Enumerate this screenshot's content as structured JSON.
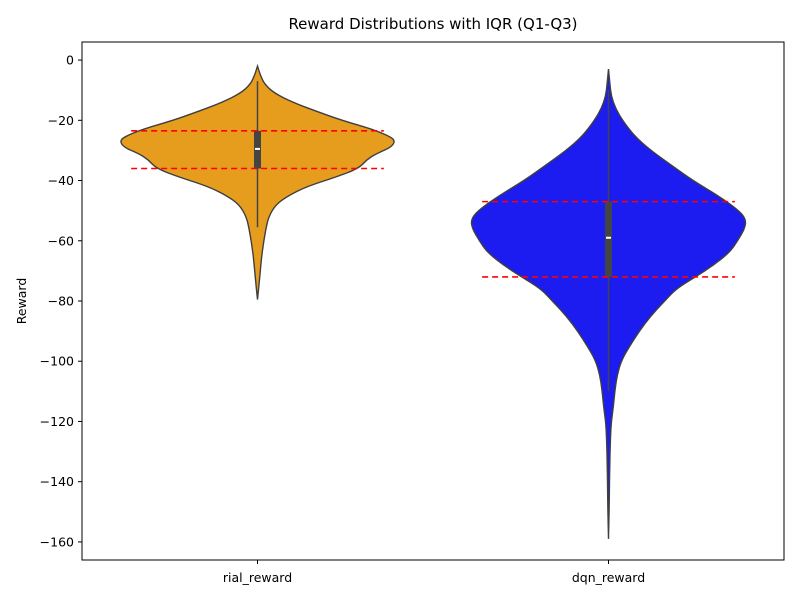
{
  "chart_data": {
    "type": "violin",
    "title": "Reward Distributions with IQR (Q1-Q3)",
    "xlabel": "",
    "ylabel": "Reward",
    "ylim": [
      -166,
      6
    ],
    "yticks": [
      0,
      -20,
      -40,
      -60,
      -80,
      -100,
      -120,
      -140,
      -160
    ],
    "categories": [
      "rial_reward",
      "dqn_reward"
    ],
    "grid": false,
    "iqr_line_color": "#ff0000",
    "violins": [
      {
        "category": "rial_reward",
        "color": "#e69c1c",
        "min": -79.5,
        "max": -2,
        "whisker_low": -55.5,
        "whisker_high": -7,
        "q1": -36,
        "median": -29.5,
        "q3": -23.5,
        "density": [
          [
            -2,
            0.0
          ],
          [
            -5,
            0.02
          ],
          [
            -8,
            0.05
          ],
          [
            -11,
            0.12
          ],
          [
            -14,
            0.25
          ],
          [
            -17,
            0.42
          ],
          [
            -20,
            0.6
          ],
          [
            -23,
            0.82
          ],
          [
            -25.5,
            0.95
          ],
          [
            -27,
            0.98
          ],
          [
            -29,
            0.95
          ],
          [
            -31,
            0.85
          ],
          [
            -33,
            0.78
          ],
          [
            -36,
            0.72
          ],
          [
            -39,
            0.55
          ],
          [
            -42,
            0.35
          ],
          [
            -45,
            0.22
          ],
          [
            -48,
            0.13
          ],
          [
            -52,
            0.08
          ],
          [
            -56,
            0.06
          ],
          [
            -60,
            0.045
          ],
          [
            -65,
            0.03
          ],
          [
            -70,
            0.02
          ],
          [
            -75,
            0.01
          ],
          [
            -79.5,
            0.0
          ]
        ]
      },
      {
        "category": "dqn_reward",
        "color": "#1c1cf0",
        "min": -159,
        "max": -3,
        "whisker_low": -110,
        "whisker_high": -10,
        "q1": -72,
        "median": -59,
        "q3": -47,
        "density": [
          [
            -3,
            0.0
          ],
          [
            -8,
            0.01
          ],
          [
            -12,
            0.02
          ],
          [
            -16,
            0.05
          ],
          [
            -20,
            0.1
          ],
          [
            -25,
            0.18
          ],
          [
            -30,
            0.3
          ],
          [
            -35,
            0.45
          ],
          [
            -40,
            0.6
          ],
          [
            -45,
            0.78
          ],
          [
            -50,
            0.93
          ],
          [
            -53,
            0.98
          ],
          [
            -56,
            0.97
          ],
          [
            -60,
            0.92
          ],
          [
            -64,
            0.86
          ],
          [
            -68,
            0.75
          ],
          [
            -72,
            0.62
          ],
          [
            -76,
            0.48
          ],
          [
            -80,
            0.4
          ],
          [
            -85,
            0.3
          ],
          [
            -90,
            0.22
          ],
          [
            -95,
            0.15
          ],
          [
            -100,
            0.09
          ],
          [
            -105,
            0.06
          ],
          [
            -110,
            0.045
          ],
          [
            -115,
            0.035
          ],
          [
            -120,
            0.02
          ],
          [
            -125,
            0.014
          ],
          [
            -130,
            0.011
          ],
          [
            -135,
            0.009
          ],
          [
            -140,
            0.007
          ],
          [
            -145,
            0.006
          ],
          [
            -150,
            0.004
          ],
          [
            -155,
            0.002
          ],
          [
            -159,
            0.0
          ]
        ]
      }
    ]
  }
}
